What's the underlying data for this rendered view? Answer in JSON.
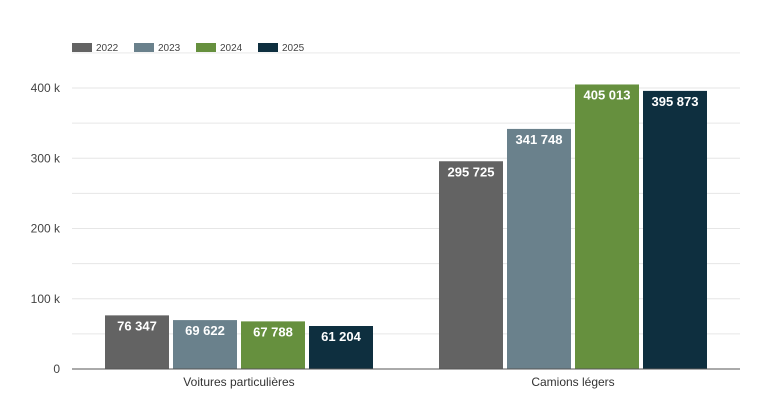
{
  "chart_data": {
    "type": "bar",
    "categories": [
      "Voitures particulières",
      "Camions légers"
    ],
    "series": [
      {
        "name": "2022",
        "color": "#636363",
        "values": [
          76347,
          295725
        ],
        "labels": [
          "76 347",
          "295 725"
        ]
      },
      {
        "name": "2023",
        "color": "#6a818c",
        "values": [
          69622,
          341748
        ],
        "labels": [
          "69 622",
          "341 748"
        ]
      },
      {
        "name": "2024",
        "color": "#66903e",
        "values": [
          67788,
          405013
        ],
        "labels": [
          "67 788",
          "405 013"
        ]
      },
      {
        "name": "2025",
        "color": "#0e2f3f",
        "values": [
          61204,
          395873
        ],
        "labels": [
          "61 204",
          "395 873"
        ]
      }
    ],
    "ylim": [
      0,
      400000
    ],
    "yticks": [
      {
        "value": 0,
        "label": "0"
      },
      {
        "value": 100000,
        "label": "100 k"
      },
      {
        "value": 200000,
        "label": "200 k"
      },
      {
        "value": 300000,
        "label": "300 k"
      },
      {
        "value": 400000,
        "label": "400 k"
      }
    ],
    "grid": true,
    "legend": "top-left",
    "title": "",
    "xlabel": "",
    "ylabel": ""
  }
}
